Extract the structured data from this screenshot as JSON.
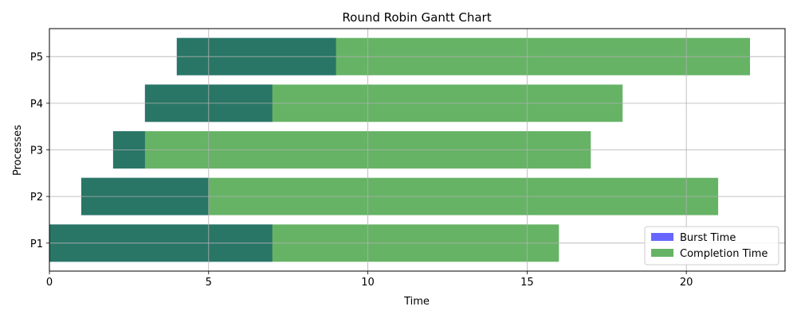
{
  "chart_data": {
    "type": "bar",
    "orientation": "horizontal",
    "title": "Round Robin Gantt Chart",
    "xlabel": "Time",
    "ylabel": "Processes",
    "categories": [
      "P1",
      "P2",
      "P3",
      "P4",
      "P5"
    ],
    "xlim": [
      0,
      23.1
    ],
    "x_ticks": [
      0,
      5,
      10,
      15,
      20
    ],
    "grid": true,
    "legend_position": "lower-right",
    "series": [
      {
        "name": "Burst Time",
        "color": "#0000ff",
        "opacity": 0.6,
        "starts": [
          0,
          1,
          2,
          3,
          4
        ],
        "values": [
          7,
          4,
          1,
          4,
          5
        ]
      },
      {
        "name": "Completion Time",
        "color": "#008000",
        "opacity": 0.6,
        "starts": [
          0,
          1,
          2,
          3,
          4
        ],
        "values": [
          16,
          20,
          15,
          15,
          18
        ]
      }
    ]
  }
}
